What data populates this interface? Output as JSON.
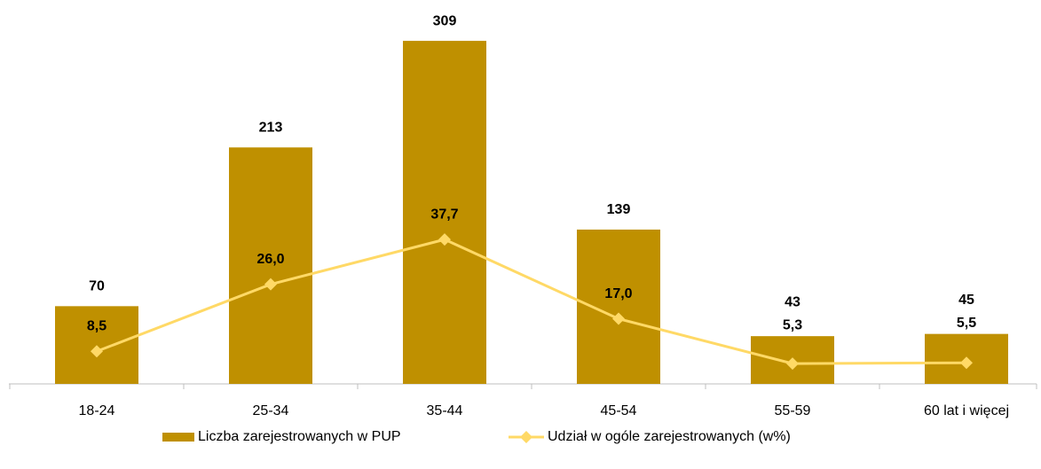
{
  "chart_data": {
    "type": "bar_line",
    "categories": [
      "18-24",
      "25-34",
      "35-44",
      "45-54",
      "55-59",
      "60 lat i więcej"
    ],
    "series": [
      {
        "name": "Liczba zarejestrowanych w PUP",
        "type": "bar",
        "color": "#bf9000",
        "values": [
          70,
          213,
          309,
          139,
          43,
          45
        ]
      },
      {
        "name": "Udział w ogóle zarejestrowanych (w%)",
        "type": "line",
        "axis": "y2",
        "color": "#ffd966",
        "values": [
          8.5,
          26.0,
          37.7,
          17.0,
          5.3,
          5.5
        ],
        "value_labels": [
          "8,5",
          "26,0",
          "37,7",
          "17,0",
          "5,3",
          "5,5"
        ]
      }
    ],
    "ylim": [
      0,
      345
    ],
    "y2lim": [
      0,
      100
    ],
    "legend": "bottom",
    "grid": false
  }
}
